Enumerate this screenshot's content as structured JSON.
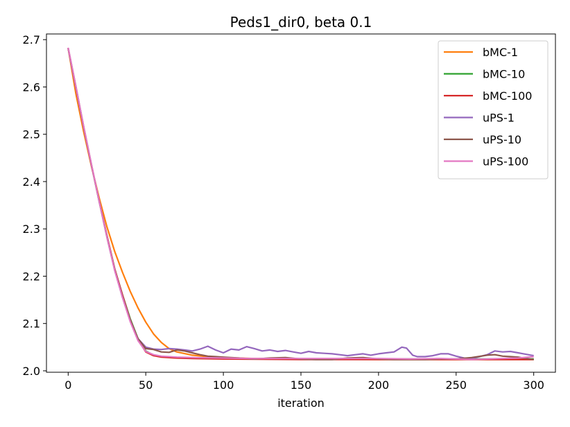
{
  "chart_data": {
    "type": "line",
    "title": "Peds1_dir0, beta 0.1",
    "xlabel": "iteration",
    "ylabel": "",
    "xlim": [
      -14,
      314
    ],
    "ylim": [
      1.997,
      2.712
    ],
    "xticks": [
      0,
      50,
      100,
      150,
      200,
      250,
      300
    ],
    "yticks": [
      2.0,
      2.1,
      2.2,
      2.3,
      2.4,
      2.5,
      2.6,
      2.7
    ],
    "grid": false,
    "legend_position": "top-right",
    "series": [
      {
        "name": "bMC-1",
        "color": "#ff7f0e",
        "points": [
          [
            0,
            2.682
          ],
          [
            5,
            2.585
          ],
          [
            10,
            2.505
          ],
          [
            15,
            2.432
          ],
          [
            20,
            2.365
          ],
          [
            25,
            2.304
          ],
          [
            30,
            2.252
          ],
          [
            35,
            2.208
          ],
          [
            40,
            2.168
          ],
          [
            45,
            2.133
          ],
          [
            50,
            2.103
          ],
          [
            55,
            2.078
          ],
          [
            60,
            2.06
          ],
          [
            65,
            2.047
          ],
          [
            70,
            2.04
          ],
          [
            80,
            2.033
          ],
          [
            90,
            2.03
          ],
          [
            100,
            2.028
          ],
          [
            120,
            2.026
          ],
          [
            150,
            2.025
          ],
          [
            200,
            2.024
          ],
          [
            250,
            2.024
          ],
          [
            300,
            2.024
          ]
        ]
      },
      {
        "name": "bMC-10",
        "color": "#2ca02c",
        "points": [
          [
            0,
            2.682
          ],
          [
            5,
            2.598
          ],
          [
            10,
            2.515
          ],
          [
            15,
            2.435
          ],
          [
            20,
            2.358
          ],
          [
            25,
            2.285
          ],
          [
            30,
            2.215
          ],
          [
            35,
            2.16
          ],
          [
            40,
            2.11
          ],
          [
            45,
            2.068
          ],
          [
            50,
            2.042
          ],
          [
            55,
            2.033
          ],
          [
            60,
            2.03
          ],
          [
            70,
            2.028
          ],
          [
            80,
            2.027
          ],
          [
            100,
            2.026
          ],
          [
            150,
            2.025
          ],
          [
            200,
            2.025
          ],
          [
            250,
            2.025
          ],
          [
            300,
            2.025
          ]
        ]
      },
      {
        "name": "bMC-100",
        "color": "#d62728",
        "points": [
          [
            0,
            2.682
          ],
          [
            5,
            2.598
          ],
          [
            10,
            2.515
          ],
          [
            15,
            2.435
          ],
          [
            20,
            2.358
          ],
          [
            25,
            2.285
          ],
          [
            30,
            2.215
          ],
          [
            35,
            2.16
          ],
          [
            40,
            2.108
          ],
          [
            45,
            2.066
          ],
          [
            50,
            2.04
          ],
          [
            55,
            2.032
          ],
          [
            60,
            2.029
          ],
          [
            70,
            2.027
          ],
          [
            80,
            2.026
          ],
          [
            100,
            2.025
          ],
          [
            150,
            2.024
          ],
          [
            200,
            2.024
          ],
          [
            250,
            2.024
          ],
          [
            300,
            2.024
          ]
        ]
      },
      {
        "name": "uPS-1",
        "color": "#9467bd",
        "points": [
          [
            0,
            2.682
          ],
          [
            5,
            2.6
          ],
          [
            10,
            2.515
          ],
          [
            15,
            2.435
          ],
          [
            20,
            2.358
          ],
          [
            25,
            2.282
          ],
          [
            30,
            2.212
          ],
          [
            35,
            2.155
          ],
          [
            40,
            2.106
          ],
          [
            45,
            2.068
          ],
          [
            50,
            2.05
          ],
          [
            55,
            2.046
          ],
          [
            60,
            2.045
          ],
          [
            65,
            2.047
          ],
          [
            70,
            2.046
          ],
          [
            75,
            2.044
          ],
          [
            80,
            2.042
          ],
          [
            85,
            2.046
          ],
          [
            90,
            2.052
          ],
          [
            95,
            2.044
          ],
          [
            100,
            2.038
          ],
          [
            105,
            2.046
          ],
          [
            110,
            2.044
          ],
          [
            115,
            2.051
          ],
          [
            120,
            2.047
          ],
          [
            125,
            2.042
          ],
          [
            130,
            2.044
          ],
          [
            135,
            2.041
          ],
          [
            140,
            2.043
          ],
          [
            145,
            2.04
          ],
          [
            150,
            2.037
          ],
          [
            155,
            2.041
          ],
          [
            160,
            2.038
          ],
          [
            165,
            2.037
          ],
          [
            170,
            2.036
          ],
          [
            175,
            2.034
          ],
          [
            180,
            2.032
          ],
          [
            185,
            2.034
          ],
          [
            190,
            2.036
          ],
          [
            195,
            2.033
          ],
          [
            200,
            2.036
          ],
          [
            205,
            2.038
          ],
          [
            210,
            2.04
          ],
          [
            215,
            2.05
          ],
          [
            218,
            2.048
          ],
          [
            222,
            2.033
          ],
          [
            225,
            2.03
          ],
          [
            230,
            2.03
          ],
          [
            235,
            2.032
          ],
          [
            240,
            2.036
          ],
          [
            245,
            2.036
          ],
          [
            250,
            2.031
          ],
          [
            255,
            2.027
          ],
          [
            260,
            2.026
          ],
          [
            265,
            2.03
          ],
          [
            270,
            2.034
          ],
          [
            275,
            2.042
          ],
          [
            280,
            2.04
          ],
          [
            285,
            2.041
          ],
          [
            290,
            2.038
          ],
          [
            295,
            2.035
          ],
          [
            300,
            2.032
          ]
        ]
      },
      {
        "name": "uPS-10",
        "color": "#8c564b",
        "points": [
          [
            0,
            2.682
          ],
          [
            5,
            2.6
          ],
          [
            10,
            2.515
          ],
          [
            15,
            2.435
          ],
          [
            20,
            2.358
          ],
          [
            25,
            2.283
          ],
          [
            30,
            2.213
          ],
          [
            35,
            2.157
          ],
          [
            40,
            2.108
          ],
          [
            45,
            2.068
          ],
          [
            50,
            2.047
          ],
          [
            55,
            2.045
          ],
          [
            60,
            2.04
          ],
          [
            65,
            2.039
          ],
          [
            70,
            2.044
          ],
          [
            75,
            2.042
          ],
          [
            80,
            2.038
          ],
          [
            85,
            2.034
          ],
          [
            90,
            2.031
          ],
          [
            95,
            2.03
          ],
          [
            100,
            2.029
          ],
          [
            105,
            2.028
          ],
          [
            110,
            2.027
          ],
          [
            115,
            2.026
          ],
          [
            120,
            2.025
          ],
          [
            130,
            2.027
          ],
          [
            140,
            2.028
          ],
          [
            150,
            2.025
          ],
          [
            160,
            2.024
          ],
          [
            170,
            2.024
          ],
          [
            180,
            2.027
          ],
          [
            190,
            2.028
          ],
          [
            200,
            2.025
          ],
          [
            210,
            2.024
          ],
          [
            220,
            2.024
          ],
          [
            230,
            2.024
          ],
          [
            240,
            2.025
          ],
          [
            250,
            2.025
          ],
          [
            260,
            2.028
          ],
          [
            270,
            2.033
          ],
          [
            275,
            2.034
          ],
          [
            280,
            2.031
          ],
          [
            285,
            2.03
          ],
          [
            290,
            2.029
          ],
          [
            295,
            2.026
          ],
          [
            300,
            2.024
          ]
        ]
      },
      {
        "name": "uPS-100",
        "color": "#e377c2",
        "points": [
          [
            0,
            2.683
          ],
          [
            5,
            2.6
          ],
          [
            10,
            2.516
          ],
          [
            15,
            2.436
          ],
          [
            20,
            2.358
          ],
          [
            25,
            2.283
          ],
          [
            30,
            2.212
          ],
          [
            35,
            2.155
          ],
          [
            40,
            2.104
          ],
          [
            45,
            2.064
          ],
          [
            50,
            2.041
          ],
          [
            55,
            2.034
          ],
          [
            60,
            2.031
          ],
          [
            70,
            2.029
          ],
          [
            80,
            2.028
          ],
          [
            100,
            2.027
          ],
          [
            120,
            2.026
          ],
          [
            150,
            2.026
          ],
          [
            200,
            2.026
          ],
          [
            220,
            2.025
          ],
          [
            240,
            2.026
          ],
          [
            250,
            2.025
          ],
          [
            260,
            2.024
          ],
          [
            270,
            2.025
          ],
          [
            280,
            2.026
          ],
          [
            290,
            2.027
          ],
          [
            300,
            2.03
          ]
        ]
      }
    ]
  }
}
